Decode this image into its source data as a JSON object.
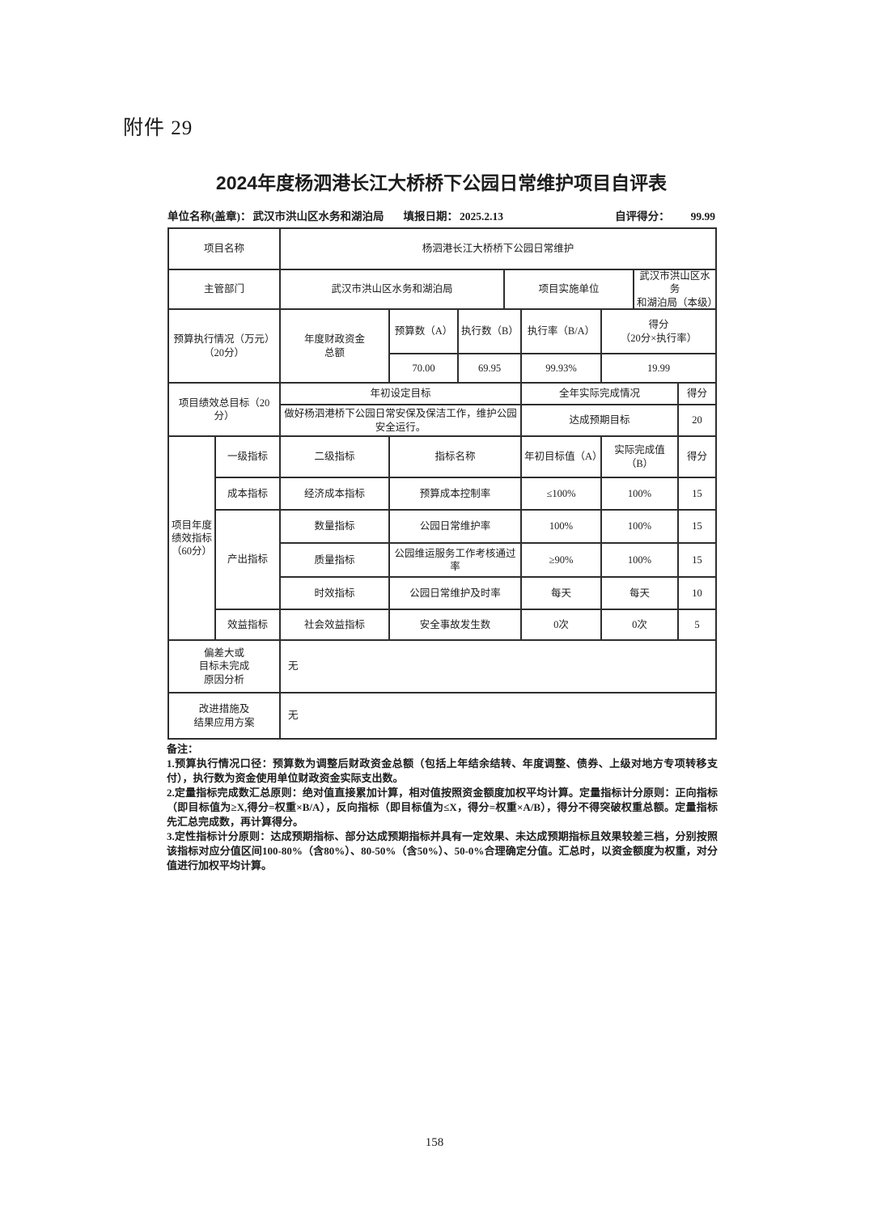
{
  "page": {
    "attachment_label": "附件 29",
    "title": "2024年度杨泗港长江大桥桥下公园日常维护项目自评表",
    "page_number": "158"
  },
  "meta": {
    "unit_label": "单位名称(盖章)：",
    "unit_value": "武汉市洪山区水务和湖泊局",
    "date_label": "填报日期：",
    "date_value": "2025.2.13",
    "score_label": "自评得分：",
    "score_value": "99.99"
  },
  "table": {
    "project_name_label": "项目名称",
    "project_name_value": "杨泗港长江大桥桥下公园日常维护",
    "dept_label": "主管部门",
    "dept_value": "武汉市洪山区水务和湖泊局",
    "impl_label": "项目实施单位",
    "impl_value": "武汉市洪山区水务\n和湖泊局（本级）",
    "budget": {
      "row_label": "预算执行情况（万元）\n（20分）",
      "fund_label": "年度财政资金\n总额",
      "headers": [
        "预算数（A）",
        "执行数（B）",
        "执行率（B/A）",
        "得分\n（20分×执行率）"
      ],
      "values": [
        "70.00",
        "69.95",
        "99.93%",
        "19.99"
      ]
    },
    "goal": {
      "row_label": "项目绩效总目标（20分）",
      "set_header": "年初设定目标",
      "actual_header": "全年实际完成情况",
      "score_header": "得分",
      "set_value": "做好杨泗港桥下公园日常安保及保洁工作，维护公园安全运行。",
      "actual_value": "达成预期目标",
      "score_value": "20"
    },
    "indicators": {
      "section_label": "项目年度\n绩效指标\n（60分）",
      "headers": [
        "一级指标",
        "二级指标",
        "指标名称",
        "年初目标值（A）",
        "实际完成值（B）",
        "得分"
      ],
      "rows": [
        {
          "level1": "成本指标",
          "level2": "经济成本指标",
          "name": "预算成本控制率",
          "target": "≤100%",
          "actual": "100%",
          "score": "15"
        },
        {
          "level1": "产出指标",
          "level2": "数量指标",
          "name": "公园日常维护率",
          "target": "100%",
          "actual": "100%",
          "score": "15"
        },
        {
          "level2": "质量指标",
          "name": "公园维运服务工作考核通过率",
          "target": "≥90%",
          "actual": "100%",
          "score": "15"
        },
        {
          "level2": "时效指标",
          "name": "公园日常维护及时率",
          "target": "每天",
          "actual": "每天",
          "score": "10"
        },
        {
          "level1": "效益指标",
          "level2": "社会效益指标",
          "name": "安全事故发生数",
          "target": "0次",
          "actual": "0次",
          "score": "5"
        }
      ]
    },
    "deviation": {
      "label": "偏差大或\n目标未完成\n原因分析",
      "value": "无"
    },
    "improvement": {
      "label": "改进措施及\n结果应用方案",
      "value": "无"
    }
  },
  "notes": {
    "title": "备注：",
    "items": [
      "1.预算执行情况口径：预算数为调整后财政资金总额（包括上年结余结转、年度调整、债券、上级对地方专项转移支付），执行数为资金使用单位财政资金实际支出数。",
      "2.定量指标完成数汇总原则：绝对值直接累加计算，相对值按照资金额度加权平均计算。定量指标计分原则：正向指标（即目标值为≥X,得分=权重×B/A），反向指标（即目标值为≤X，得分=权重×A/B），得分不得突破权重总额。定量指标先汇总完成数，再计算得分。",
      "3.定性指标计分原则：达成预期指标、部分达成预期指标并具有一定效果、未达成预期指标且效果较差三档，分别按照该指标对应分值区间100-80%（含80%）、80-50%（含50%）、50-0%合理确定分值。汇总时，以资金额度为权重，对分值进行加权平均计算。"
    ]
  }
}
